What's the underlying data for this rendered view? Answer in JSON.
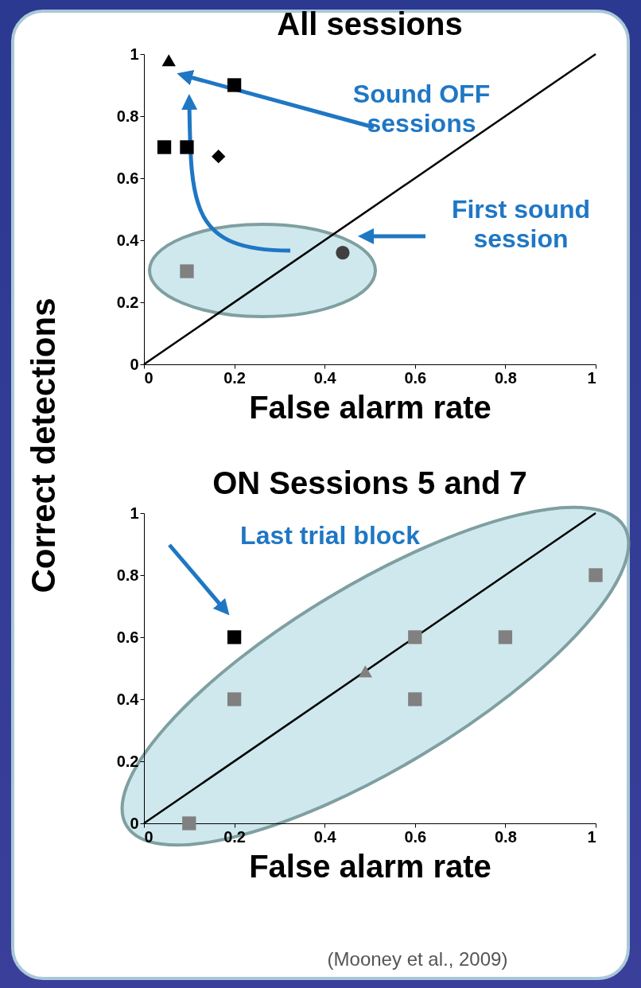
{
  "chart_data": [
    {
      "type": "scatter",
      "title": "All sessions",
      "xlabel": "False alarm rate",
      "ylabel": "Correct detections",
      "xlim": [
        0,
        1
      ],
      "ylim": [
        0,
        1
      ],
      "xticks": [
        0,
        0.2,
        0.4,
        0.6,
        0.8,
        1
      ],
      "yticks": [
        0,
        0.2,
        0.4,
        0.6,
        0.8,
        1
      ],
      "annotations": [
        "Sound OFF sessions",
        "First sound session"
      ],
      "series": [
        {
          "type": "line",
          "color": "#000000",
          "x": [
            0,
            1
          ],
          "values": [
            0,
            1
          ]
        },
        {
          "color": "#000000",
          "marker": "triangle",
          "x": [
            0.055
          ],
          "values": [
            0.98
          ]
        },
        {
          "color": "#000000",
          "marker": "square",
          "x": [
            0.2,
            0.045,
            0.095
          ],
          "values": [
            0.9,
            0.7,
            0.7
          ]
        },
        {
          "color": "#000000",
          "marker": "diamond",
          "x": [
            0.165
          ],
          "values": [
            0.67
          ]
        },
        {
          "color": "#808080",
          "marker": "square",
          "x": [
            0.095
          ],
          "values": [
            0.3
          ]
        },
        {
          "color": "#404040",
          "marker": "circle",
          "x": [
            0.44
          ],
          "values": [
            0.36
          ]
        }
      ]
    },
    {
      "type": "scatter",
      "title": "ON Sessions 5 and 7",
      "xlabel": "False alarm rate",
      "xlim": [
        0,
        1
      ],
      "ylim": [
        0,
        1
      ],
      "xticks": [
        0,
        0.2,
        0.4,
        0.6,
        0.8,
        1
      ],
      "yticks": [
        0,
        0.2,
        0.4,
        0.6,
        0.8,
        1
      ],
      "annotations": [
        "Last trial block",
        "(Mooney et al., 2009)"
      ],
      "series": [
        {
          "type": "line",
          "color": "#000000",
          "x": [
            0,
            1
          ],
          "values": [
            0,
            1
          ]
        },
        {
          "color": "#808080",
          "marker": "square",
          "x": [
            0.2,
            0.1,
            0.6,
            0.6,
            0.8,
            1
          ],
          "values": [
            0.4,
            0,
            0.6,
            0.4,
            0.6,
            0.8
          ]
        },
        {
          "color": "#000000",
          "marker": "square",
          "x": [
            0.2
          ],
          "values": [
            0.6
          ]
        },
        {
          "color": "#808080",
          "marker": "triangle",
          "x": [
            0.49
          ],
          "values": [
            0.49
          ]
        }
      ]
    }
  ]
}
